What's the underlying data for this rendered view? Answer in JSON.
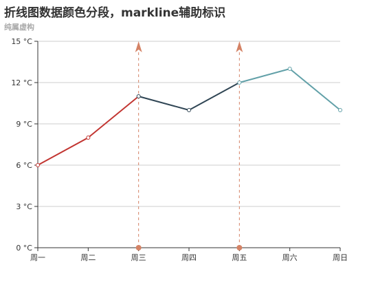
{
  "chart_data": {
    "type": "line",
    "title": "折线图数据颜色分段，markline辅助标识",
    "subtitle": "纯属虚构",
    "categories": [
      "周一",
      "周二",
      "周三",
      "周四",
      "周五",
      "周六",
      "周日"
    ],
    "values": [
      6,
      8,
      11,
      10,
      12,
      13,
      10
    ],
    "y_unit": "°C",
    "ylim": [
      0,
      15
    ],
    "yticks": [
      0,
      3,
      6,
      9,
      12,
      15
    ],
    "grid": true,
    "segments": [
      {
        "from": 0,
        "to": 2,
        "color": "#c23531"
      },
      {
        "from": 2,
        "to": 4,
        "color": "#2f4554"
      },
      {
        "from": 4,
        "to": 6,
        "color": "#61a0a8"
      }
    ],
    "marklines": [
      {
        "category": "周三",
        "color": "#d48265"
      },
      {
        "category": "周五",
        "color": "#d48265"
      }
    ]
  },
  "colors": {
    "grid": "#cccccc",
    "axis": "#333333",
    "point_fill": "#ffffff"
  }
}
